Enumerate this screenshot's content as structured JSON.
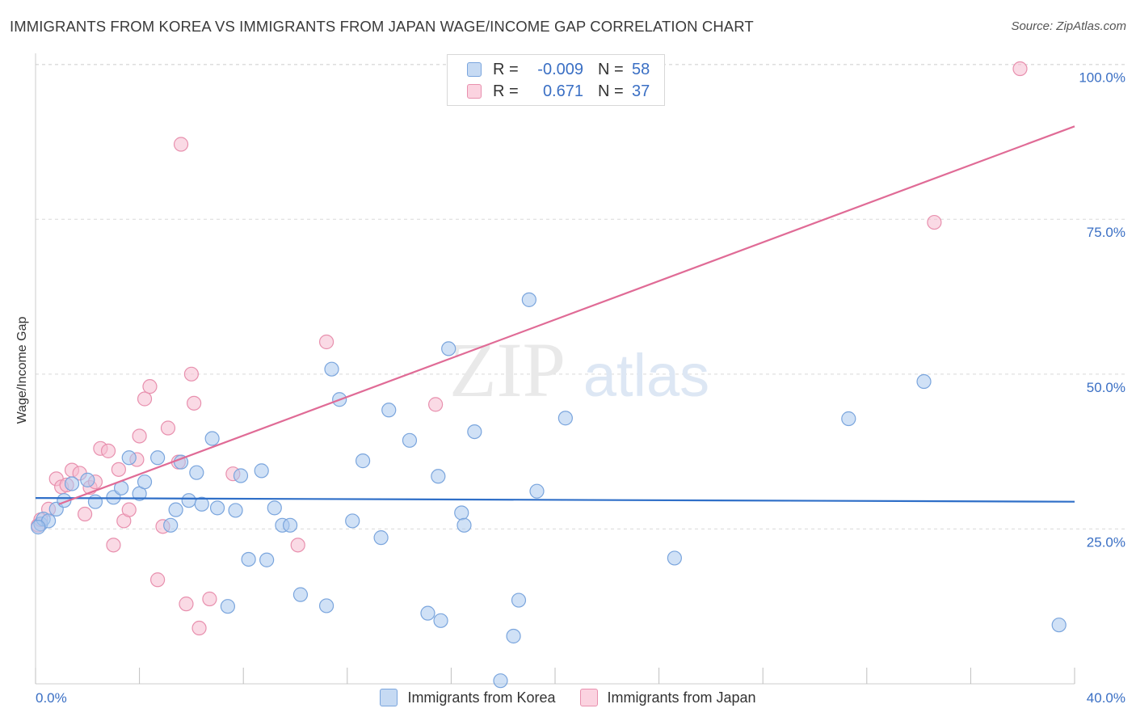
{
  "header": {
    "title": "IMMIGRANTS FROM KOREA VS IMMIGRANTS FROM JAPAN WAGE/INCOME GAP CORRELATION CHART",
    "source": "Source: ZipAtlas.com"
  },
  "watermark": {
    "zip": "ZIP",
    "atlas": "atlas"
  },
  "colors": {
    "korea_fill": "#aac8ee",
    "korea_stroke": "#7aa5dd",
    "korea_line": "#2f6fc8",
    "japan_fill": "#f5bcd0",
    "japan_stroke": "#e890ae",
    "japan_line": "#e06b96",
    "axis_text": "#3a6fc4",
    "grid": "#d9d9d9"
  },
  "legend": {
    "rows": [
      {
        "series": "korea",
        "r_label": "R =",
        "r_value": "-0.009",
        "n_label": "N =",
        "n_value": "58"
      },
      {
        "series": "japan",
        "r_label": "R =",
        "r_value": "0.671",
        "n_label": "N =",
        "n_value": "37"
      }
    ]
  },
  "chart_data": {
    "type": "scatter",
    "title": "IMMIGRANTS FROM KOREA VS IMMIGRANTS FROM JAPAN WAGE/INCOME GAP CORRELATION CHART",
    "xlabel": "",
    "ylabel": "Wage/Income Gap",
    "xlim": [
      0,
      40
    ],
    "ylim": [
      0,
      101
    ],
    "x_tick_labels": [
      "0.0%",
      "40.0%"
    ],
    "y_ticks": [
      25,
      50,
      75,
      100
    ],
    "y_tick_labels": [
      "25.0%",
      "50.0%",
      "75.0%",
      "100.0%"
    ],
    "grid": true,
    "legend_position": "top-center",
    "series": [
      {
        "name": "Immigrants from Korea",
        "key": "korea",
        "trend": {
          "x": [
            0,
            40
          ],
          "y": [
            30.0,
            29.4
          ]
        },
        "points": [
          [
            0.2,
            25.8
          ],
          [
            0.3,
            26.6
          ],
          [
            0.5,
            26.3
          ],
          [
            0.8,
            28.2
          ],
          [
            1.1,
            29.6
          ],
          [
            1.4,
            32.3
          ],
          [
            2.0,
            32.9
          ],
          [
            2.3,
            29.4
          ],
          [
            3.0,
            30.1
          ],
          [
            3.3,
            31.6
          ],
          [
            3.6,
            36.5
          ],
          [
            4.0,
            30.7
          ],
          [
            4.2,
            32.6
          ],
          [
            4.7,
            36.5
          ],
          [
            5.2,
            25.6
          ],
          [
            5.4,
            28.1
          ],
          [
            5.6,
            35.8
          ],
          [
            5.9,
            29.6
          ],
          [
            6.2,
            34.1
          ],
          [
            6.4,
            29.0
          ],
          [
            6.8,
            39.6
          ],
          [
            7.0,
            28.4
          ],
          [
            7.4,
            12.5
          ],
          [
            7.7,
            28.0
          ],
          [
            7.9,
            33.6
          ],
          [
            8.2,
            20.1
          ],
          [
            8.7,
            34.4
          ],
          [
            8.9,
            20.0
          ],
          [
            9.2,
            28.4
          ],
          [
            9.5,
            25.6
          ],
          [
            9.8,
            25.6
          ],
          [
            10.2,
            14.4
          ],
          [
            11.2,
            12.6
          ],
          [
            11.4,
            50.8
          ],
          [
            11.7,
            45.9
          ],
          [
            12.2,
            26.3
          ],
          [
            12.6,
            36.0
          ],
          [
            13.3,
            23.6
          ],
          [
            13.6,
            44.2
          ],
          [
            14.4,
            39.3
          ],
          [
            15.1,
            11.4
          ],
          [
            15.5,
            33.5
          ],
          [
            15.6,
            10.2
          ],
          [
            15.9,
            54.1
          ],
          [
            16.4,
            27.6
          ],
          [
            16.5,
            25.6
          ],
          [
            16.9,
            40.7
          ],
          [
            17.9,
            0.5
          ],
          [
            18.4,
            7.7
          ],
          [
            18.6,
            13.5
          ],
          [
            19.0,
            62.0
          ],
          [
            19.3,
            31.1
          ],
          [
            20.4,
            42.9
          ],
          [
            24.6,
            20.3
          ],
          [
            31.3,
            42.8
          ],
          [
            34.2,
            48.8
          ],
          [
            39.4,
            9.5
          ],
          [
            0.1,
            25.3
          ]
        ]
      },
      {
        "name": "Immigrants from Japan",
        "key": "japan",
        "trend": {
          "x": [
            0.9,
            40
          ],
          "y": [
            29.0,
            90.0
          ]
        },
        "points": [
          [
            0.1,
            25.6
          ],
          [
            0.2,
            26.5
          ],
          [
            0.5,
            28.2
          ],
          [
            0.8,
            33.1
          ],
          [
            1.0,
            31.8
          ],
          [
            1.2,
            32.1
          ],
          [
            1.4,
            34.5
          ],
          [
            1.7,
            34.0
          ],
          [
            1.9,
            27.4
          ],
          [
            2.1,
            31.7
          ],
          [
            2.3,
            32.6
          ],
          [
            2.5,
            38.0
          ],
          [
            2.8,
            37.6
          ],
          [
            3.0,
            22.4
          ],
          [
            3.2,
            34.6
          ],
          [
            3.4,
            26.3
          ],
          [
            3.6,
            28.1
          ],
          [
            3.9,
            36.2
          ],
          [
            4.0,
            40.0
          ],
          [
            4.2,
            46.0
          ],
          [
            4.4,
            48.0
          ],
          [
            4.7,
            16.8
          ],
          [
            4.9,
            25.4
          ],
          [
            5.1,
            41.3
          ],
          [
            5.5,
            35.8
          ],
          [
            5.6,
            87.1
          ],
          [
            5.8,
            12.9
          ],
          [
            6.0,
            50.0
          ],
          [
            6.1,
            45.3
          ],
          [
            6.3,
            9.0
          ],
          [
            6.7,
            13.7
          ],
          [
            7.6,
            33.9
          ],
          [
            10.1,
            22.4
          ],
          [
            11.2,
            55.2
          ],
          [
            15.4,
            45.1
          ],
          [
            34.6,
            74.5
          ],
          [
            37.9,
            99.3
          ]
        ]
      }
    ]
  },
  "bottom_legend": [
    {
      "key": "korea",
      "label": "Immigrants from Korea"
    },
    {
      "key": "japan",
      "label": "Immigrants from Japan"
    }
  ]
}
